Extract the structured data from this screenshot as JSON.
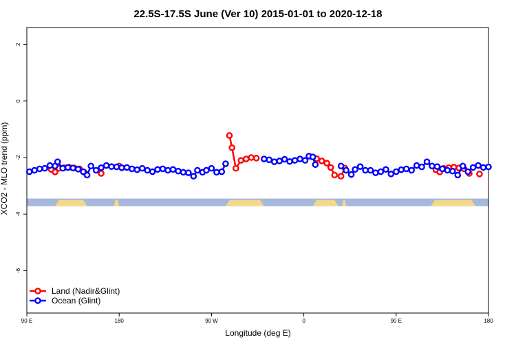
{
  "chart_data": {
    "type": "line",
    "title": "22.5S-17.5S June (Ver 10)   2015-01-01 to 2020-12-18",
    "xlabel": "Longitude (deg E)",
    "ylabel": "XCO2 - MLO trend (ppm)",
    "xlim": [
      90,
      450
    ],
    "ylim": [
      -7.5,
      2.6
    ],
    "x_ticks": [
      {
        "value": 90,
        "label": "90 E"
      },
      {
        "value": 162,
        "label": "180"
      },
      {
        "value": 234,
        "label": "90 W"
      },
      {
        "value": 306,
        "label": "0"
      },
      {
        "value": 378,
        "label": "90 E"
      },
      {
        "value": 450,
        "label": "180"
      }
    ],
    "y_ticks": [
      {
        "value": 2,
        "label": "2"
      },
      {
        "value": 0,
        "label": "0"
      },
      {
        "value": -2,
        "label": "-2"
      },
      {
        "value": -4,
        "label": "-4"
      },
      {
        "value": -6,
        "label": "-6"
      }
    ],
    "legend_position": "bottom-left",
    "series": [
      {
        "name": "Land (Nadir&Glint)",
        "color": "#ff0000",
        "segments": [
          [
            [
              109,
              -2.42
            ],
            [
              112,
              -2.51
            ],
            [
              115,
              -2.38
            ],
            [
              119,
              -2.36
            ],
            [
              123,
              -2.34
            ],
            [
              127,
              -2.37
            ],
            [
              131,
              -2.4
            ],
            [
              135,
              -2.53
            ]
          ],
          [
            [
              148,
              -2.56
            ]
          ],
          [
            [
              162,
              -2.3
            ]
          ],
          [
            [
              248,
              -1.22
            ],
            [
              250,
              -1.65
            ],
            [
              253,
              -2.38
            ],
            [
              257,
              -2.1
            ],
            [
              261,
              -2.05
            ],
            [
              265,
              -2.0
            ],
            [
              269,
              -2.02
            ]
          ],
          [
            [
              313,
              -1.98
            ],
            [
              316,
              -2.04
            ],
            [
              320,
              -2.12
            ],
            [
              324,
              -2.2
            ],
            [
              327,
              -2.35
            ],
            [
              330,
              -2.62
            ],
            [
              335,
              -2.66
            ],
            [
              338,
              -2.37
            ]
          ],
          [
            [
              409,
              -2.43
            ],
            [
              412,
              -2.51
            ],
            [
              415,
              -2.38
            ],
            [
              419,
              -2.36
            ],
            [
              423,
              -2.34
            ],
            [
              427,
              -2.37
            ],
            [
              431,
              -2.4
            ],
            [
              435,
              -2.56
            ]
          ],
          [
            [
              443,
              -2.58
            ]
          ]
        ]
      },
      {
        "name": "Ocean (Glint)",
        "color": "#0000ff",
        "segments": [
          [
            [
              92,
              -2.5
            ],
            [
              96,
              -2.45
            ],
            [
              100,
              -2.4
            ],
            [
              104,
              -2.38
            ],
            [
              108,
              -2.28
            ],
            [
              112,
              -2.3
            ],
            [
              114,
              -2.15
            ],
            [
              118,
              -2.38
            ],
            [
              122,
              -2.35
            ],
            [
              126,
              -2.37
            ],
            [
              130,
              -2.41
            ],
            [
              134,
              -2.5
            ],
            [
              137,
              -2.62
            ],
            [
              140,
              -2.3
            ],
            [
              144,
              -2.45
            ],
            [
              148,
              -2.36
            ],
            [
              152,
              -2.28
            ],
            [
              156,
              -2.32
            ],
            [
              160,
              -2.33
            ],
            [
              164,
              -2.36
            ],
            [
              168,
              -2.35
            ],
            [
              172,
              -2.4
            ],
            [
              176,
              -2.43
            ],
            [
              180,
              -2.38
            ],
            [
              184,
              -2.45
            ],
            [
              188,
              -2.5
            ],
            [
              192,
              -2.42
            ],
            [
              196,
              -2.4
            ],
            [
              200,
              -2.45
            ],
            [
              204,
              -2.42
            ],
            [
              208,
              -2.48
            ],
            [
              212,
              -2.52
            ],
            [
              216,
              -2.54
            ],
            [
              220,
              -2.66
            ],
            [
              223,
              -2.45
            ],
            [
              227,
              -2.52
            ],
            [
              230,
              -2.45
            ],
            [
              234,
              -2.38
            ],
            [
              238,
              -2.52
            ],
            [
              242,
              -2.5
            ],
            [
              245,
              -2.22
            ]
          ],
          [
            [
              275,
              -2.05
            ],
            [
              279,
              -2.08
            ],
            [
              283,
              -2.15
            ],
            [
              287,
              -2.12
            ],
            [
              291,
              -2.06
            ],
            [
              295,
              -2.14
            ],
            [
              299,
              -2.1
            ],
            [
              303,
              -2.05
            ],
            [
              307,
              -2.1
            ],
            [
              310,
              -1.95
            ],
            [
              313,
              -1.98
            ],
            [
              315,
              -2.25
            ]
          ],
          [
            [
              335,
              -2.3
            ],
            [
              339,
              -2.45
            ],
            [
              343,
              -2.6
            ],
            [
              346,
              -2.42
            ],
            [
              350,
              -2.32
            ],
            [
              354,
              -2.45
            ],
            [
              358,
              -2.45
            ],
            [
              362,
              -2.54
            ],
            [
              366,
              -2.5
            ],
            [
              370,
              -2.42
            ],
            [
              374,
              -2.58
            ],
            [
              378,
              -2.5
            ],
            [
              382,
              -2.43
            ],
            [
              386,
              -2.4
            ],
            [
              390,
              -2.45
            ],
            [
              394,
              -2.28
            ],
            [
              398,
              -2.33
            ],
            [
              402,
              -2.15
            ],
            [
              406,
              -2.3
            ],
            [
              410,
              -2.32
            ],
            [
              414,
              -2.4
            ],
            [
              418,
              -2.45
            ],
            [
              422,
              -2.48
            ],
            [
              426,
              -2.62
            ],
            [
              430,
              -2.3
            ],
            [
              434,
              -2.5
            ],
            [
              438,
              -2.35
            ],
            [
              442,
              -2.28
            ],
            [
              446,
              -2.35
            ],
            [
              450,
              -2.33
            ]
          ]
        ]
      }
    ],
    "surface_band": {
      "y_range": [
        -3.45,
        -3.72
      ],
      "ocean_color": "#a7b8dc",
      "land_color": "#f5d98a",
      "land_spans": [
        [
          112,
          137
        ],
        [
          158,
          162
        ],
        [
          245,
          275
        ],
        [
          313,
          333
        ],
        [
          336,
          339
        ],
        [
          405,
          440
        ]
      ]
    }
  }
}
